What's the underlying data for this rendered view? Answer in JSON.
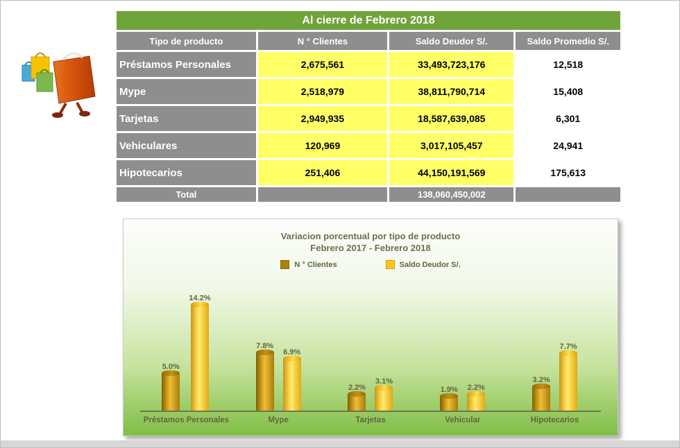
{
  "table": {
    "title": "Al cierre de  Febrero 2018",
    "headers": [
      "Tipo de producto",
      "N ° Clientes",
      "Saldo Deudor S/.",
      "Saldo Promedio S/."
    ],
    "rows": [
      {
        "producto": "Préstamos Personales",
        "clientes": "2,675,561",
        "saldo_deudor": "33,493,723,176",
        "saldo_promedio": "12,518"
      },
      {
        "producto": "Mype",
        "clientes": "2,518,979",
        "saldo_deudor": "38,811,790,714",
        "saldo_promedio": "15,408"
      },
      {
        "producto": "Tarjetas",
        "clientes": "2,949,935",
        "saldo_deudor": "18,587,639,085",
        "saldo_promedio": "6,301"
      },
      {
        "producto": "Vehiculares",
        "clientes": "120,969",
        "saldo_deudor": "3,017,105,457",
        "saldo_promedio": "24,941"
      },
      {
        "producto": "Hipotecarios",
        "clientes": "251,406",
        "saldo_deudor": "44,150,191,569",
        "saldo_promedio": "175,613"
      }
    ],
    "total": {
      "label": "Total",
      "saldo_deudor": "138,060,450,002"
    }
  },
  "illustration": {
    "name": "shopping-bags"
  },
  "chart_data": {
    "type": "bar",
    "title": "Variacion porcentual  por tipo de producto",
    "subtitle": "Febrero 2017 - Febrero 2018",
    "categories": [
      "Préstamos Personales",
      "Mype",
      "Tarjetas",
      "Vehicular",
      "Hipotecarios"
    ],
    "series": [
      {
        "name": "N ° Clientes",
        "color": "#ad830b",
        "values": [
          5.0,
          7.8,
          2.2,
          1.9,
          3.2
        ],
        "labels": [
          "5.0%",
          "7.8%",
          "2.2%",
          "1.9%",
          "3.2%"
        ]
      },
      {
        "name": "Saldo Deudor S/.",
        "color": "#ffc713",
        "values": [
          14.2,
          6.9,
          3.1,
          2.2,
          7.7
        ],
        "labels": [
          "14.2%",
          "6.9%",
          "3.1%",
          "2.2%",
          "7.7%"
        ]
      }
    ],
    "value_suffix": "%",
    "ylim": [
      0,
      15
    ],
    "grid": false,
    "legend_position": "top"
  },
  "colors": {
    "title_green": "#6fa43b",
    "header_gray": "#8e8e8e",
    "cell_yellow": "#ffff66",
    "chart_text": "#64643f"
  }
}
